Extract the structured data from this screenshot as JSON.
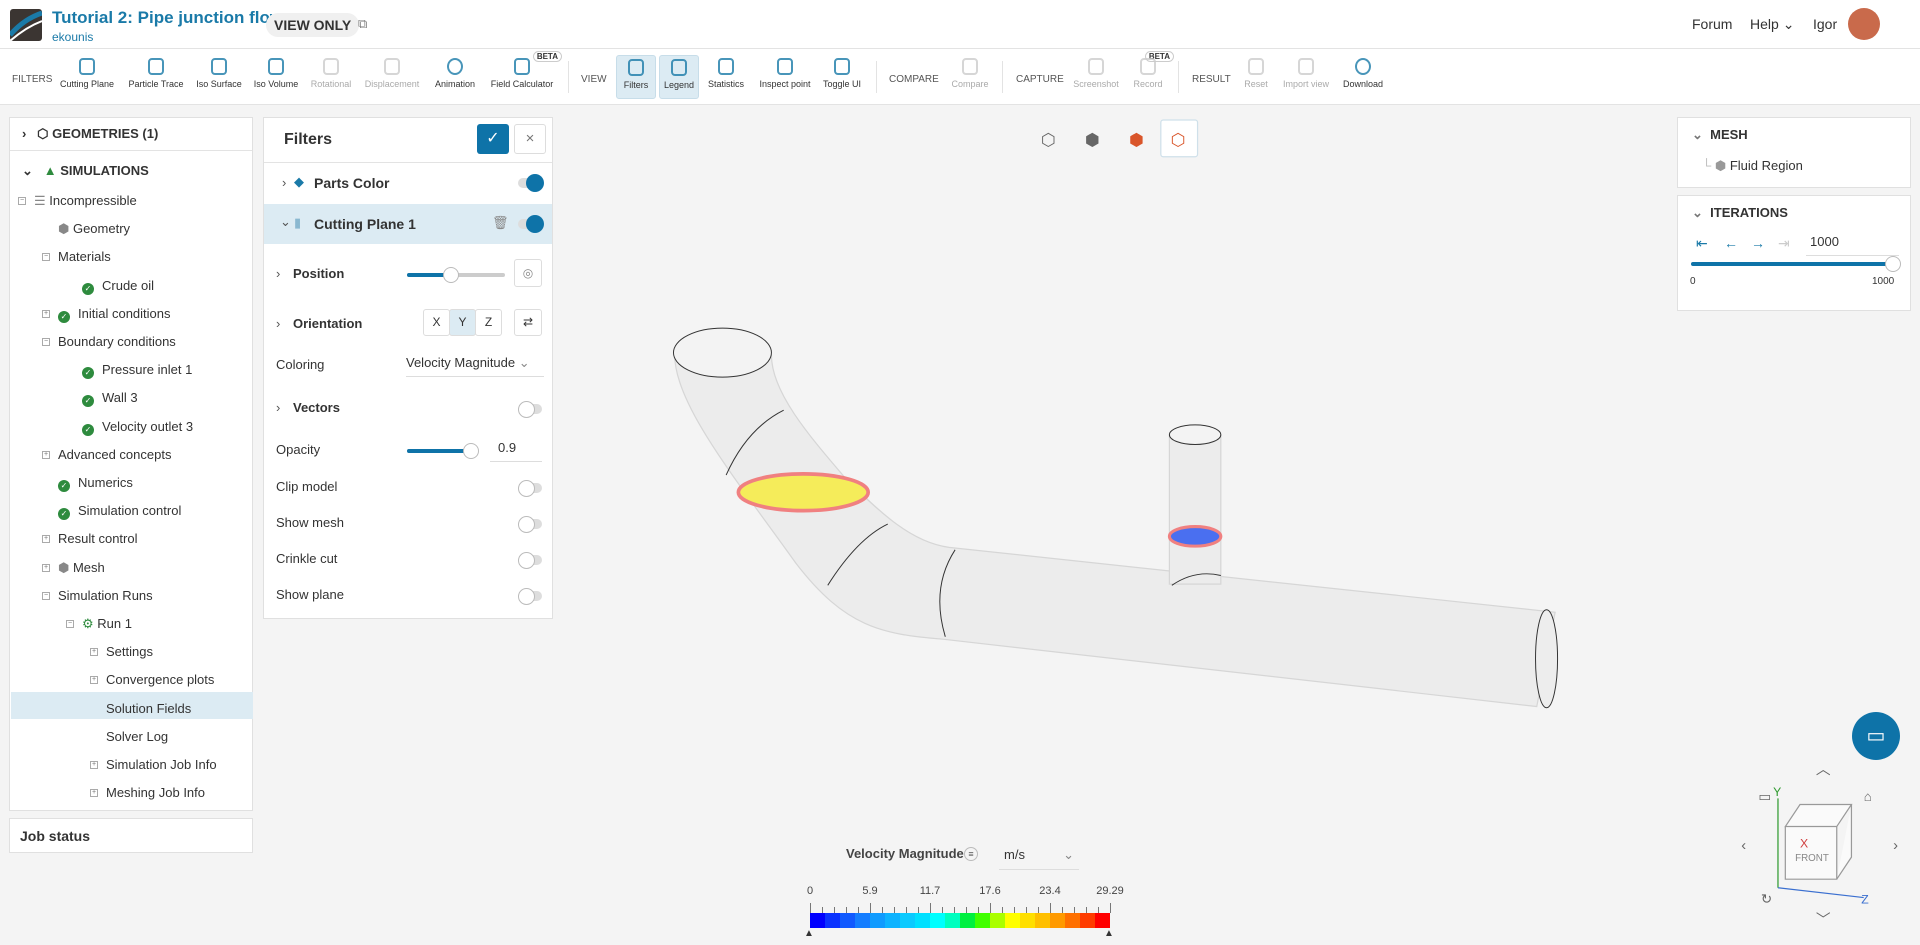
{
  "header": {
    "title": "Tutorial 2: Pipe junction flow",
    "owner": "ekounis",
    "badge": "VIEW ONLY",
    "nav": [
      "Forum",
      "Help",
      "Igor"
    ]
  },
  "toolbar": {
    "sections": {
      "filters": "FILTERS",
      "view": "VIEW",
      "compare": "COMPARE",
      "capture": "CAPTURE",
      "result": "RESULT"
    },
    "beta": "BETA",
    "filters": [
      "Cutting Plane",
      "Particle Trace",
      "Iso Surface",
      "Iso Volume",
      "Rotational",
      "Displacement",
      "Animation",
      "Field Calculator"
    ],
    "view": [
      "Filters",
      "Legend",
      "Statistics",
      "Inspect point",
      "Toggle UI"
    ],
    "compare": [
      "Compare"
    ],
    "capture": [
      "Screenshot",
      "Record"
    ],
    "result": [
      "Reset",
      "Import view",
      "Download"
    ]
  },
  "tree": {
    "geometries": "GEOMETRIES (1)",
    "simulations": "SIMULATIONS",
    "items": [
      "Incompressible",
      "Geometry",
      "Materials",
      "Crude oil",
      "Initial conditions",
      "Boundary conditions",
      "Pressure inlet 1",
      "Wall 3",
      "Velocity outlet 3",
      "Advanced concepts",
      "Numerics",
      "Simulation control",
      "Result control",
      "Mesh",
      "Simulation Runs",
      "Run 1",
      "Settings",
      "Convergence plots",
      "Solution Fields",
      "Solver Log",
      "Simulation Job Info",
      "Meshing Job Info"
    ],
    "selected": "Solution Fields",
    "job_status": "Job status"
  },
  "filters_panel": {
    "title": "Filters",
    "parts_color": "Parts Color",
    "cutting_plane": "Cutting Plane 1",
    "position": "Position",
    "position_value": 0.45,
    "orientation": "Orientation",
    "axes": [
      "X",
      "Y",
      "Z"
    ],
    "axis_selected": "Y",
    "coloring_label": "Coloring",
    "coloring_value": "Velocity Magnitude",
    "vectors": "Vectors",
    "opacity_label": "Opacity",
    "opacity": "0.9",
    "clip_model": "Clip model",
    "show_mesh": "Show mesh",
    "crinkle_cut": "Crinkle cut",
    "show_plane": "Show plane"
  },
  "mesh_panel": {
    "title": "MESH",
    "item": "Fluid Region"
  },
  "iterations": {
    "title": "ITERATIONS",
    "value": "1000",
    "min": "0",
    "max": "1000"
  },
  "legend": {
    "title": "Velocity Magnitude",
    "unit": "m/s",
    "ticks": [
      "0",
      "5.9",
      "11.7",
      "17.6",
      "23.4",
      "29.29"
    ],
    "colors": [
      "#0000ff",
      "#0a32ff",
      "#1059ff",
      "#137dff",
      "#0f9bff",
      "#0db3ff",
      "#0bcaff",
      "#00e0ff",
      "#00ffff",
      "#00ffbf",
      "#00f040",
      "#40ff00",
      "#aaff00",
      "#ffff00",
      "#ffdf00",
      "#ffbf00",
      "#ff9a00",
      "#ff7000",
      "#ff3c00",
      "#ff0000"
    ]
  },
  "nav_cube": {
    "face": "FRONT"
  },
  "colors": {
    "accent": "#0e73a8",
    "title": "#1a7aa8"
  }
}
